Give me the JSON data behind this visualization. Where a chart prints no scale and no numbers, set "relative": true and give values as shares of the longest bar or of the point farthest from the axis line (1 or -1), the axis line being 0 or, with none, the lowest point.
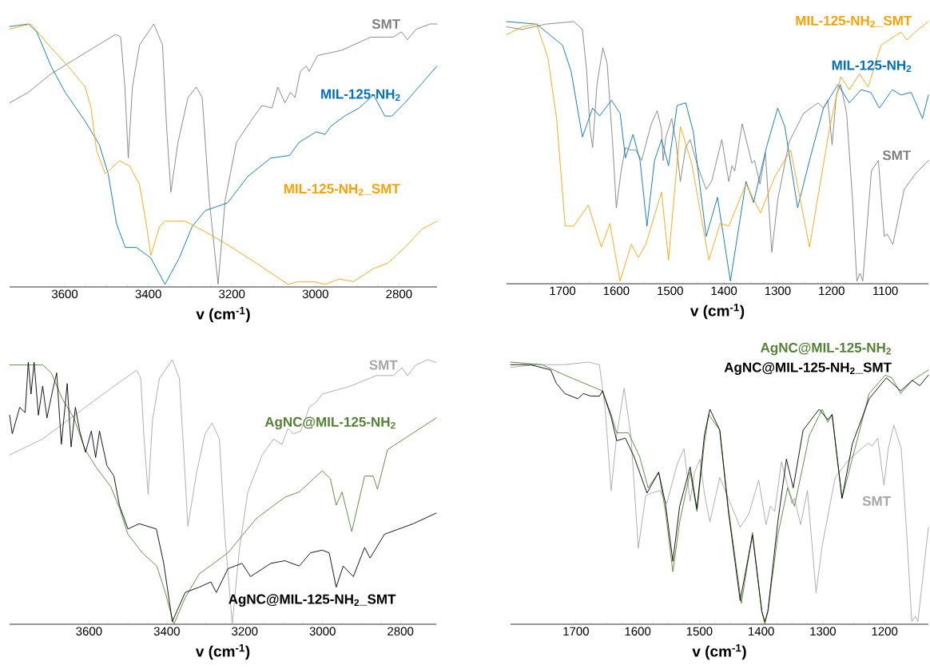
{
  "chart_data": [
    {
      "type": "line",
      "relative": true,
      "xlabel": "v (cm$^{-1}$)",
      "xlim": [
        3732,
        2709
      ],
      "xticks": [
        3600,
        3400,
        3200,
        3000,
        2800
      ],
      "series": [
        {
          "name": "SMT",
          "color": "#7f7f7f",
          "x": [
            3732,
            3687,
            3633,
            3551,
            3479,
            3466,
            3456,
            3448,
            3438,
            3421,
            3387,
            3366,
            3356,
            3346,
            3329,
            3305,
            3285,
            3271,
            3254,
            3233,
            3216,
            3189,
            3155,
            3128,
            3104,
            3090,
            3073,
            3060,
            3049,
            3036,
            3022,
            3015,
            2995,
            2937,
            2868,
            2814,
            2794,
            2780,
            2759,
            2725,
            2709
          ],
          "values": [
            0.7,
            0.74,
            0.81,
            0.89,
            0.96,
            0.95,
            0.76,
            0.49,
            0.76,
            0.92,
            1.0,
            0.92,
            0.6,
            0.36,
            0.55,
            0.72,
            0.76,
            0.72,
            0.33,
            0.01,
            0.33,
            0.55,
            0.63,
            0.69,
            0.68,
            0.76,
            0.7,
            0.74,
            0.72,
            0.82,
            0.84,
            0.82,
            0.88,
            0.9,
            0.95,
            0.95,
            0.97,
            0.94,
            0.98,
            1.0,
            1.0
          ]
        },
        {
          "name": "MIL-125-NH$_{2}$",
          "color": "#0070c0",
          "x": [
            3732,
            3687,
            3667,
            3633,
            3599,
            3551,
            3517,
            3496,
            3476,
            3455,
            3428,
            3394,
            3360,
            3326,
            3295,
            3264,
            3210,
            3162,
            3107,
            3062,
            3039,
            2998,
            2977,
            2964,
            2930,
            2896,
            2868,
            2861,
            2834,
            2817,
            2786,
            2709
          ],
          "values": [
            0.99,
            1.0,
            0.97,
            0.84,
            0.74,
            0.63,
            0.54,
            0.43,
            0.24,
            0.15,
            0.15,
            0.11,
            0.01,
            0.11,
            0.23,
            0.29,
            0.32,
            0.42,
            0.49,
            0.5,
            0.55,
            0.59,
            0.58,
            0.61,
            0.65,
            0.68,
            0.72,
            0.73,
            0.65,
            0.65,
            0.7,
            0.84
          ]
        },
        {
          "name": "MIL-125-NH$_{2}$_SMT",
          "color": "#ffa000",
          "x": [
            3732,
            3708,
            3681,
            3633,
            3592,
            3551,
            3537,
            3524,
            3503,
            3469,
            3445,
            3421,
            3404,
            3394,
            3373,
            3360,
            3312,
            3264,
            3210,
            3141,
            3066,
            3039,
            3005,
            2977,
            2943,
            2909,
            2861,
            2827,
            2786,
            2745,
            2709
          ],
          "values": [
            0.98,
            0.99,
            1.0,
            0.91,
            0.84,
            0.76,
            0.68,
            0.52,
            0.43,
            0.48,
            0.46,
            0.39,
            0.23,
            0.12,
            0.23,
            0.25,
            0.25,
            0.21,
            0.16,
            0.09,
            0.01,
            0.02,
            0.02,
            0.01,
            0.03,
            0.02,
            0.07,
            0.09,
            0.15,
            0.22,
            0.25
          ]
        }
      ]
    },
    {
      "type": "line",
      "relative": true,
      "xlabel": "v (cm$^{-1}$)",
      "xlim": [
        1804,
        1020
      ],
      "xticks": [
        1700,
        1600,
        1500,
        1400,
        1300,
        1200,
        1100
      ],
      "series": [
        {
          "name": "SMT",
          "color": "#7f7f7f",
          "x": [
            1804,
            1775,
            1732,
            1679,
            1663,
            1655,
            1649,
            1644,
            1636,
            1625,
            1617,
            1607,
            1600,
            1591,
            1583,
            1575,
            1564,
            1553,
            1535,
            1524,
            1516,
            1513,
            1508,
            1497,
            1489,
            1481,
            1471,
            1463,
            1449,
            1433,
            1423,
            1404,
            1391,
            1385,
            1380,
            1366,
            1348,
            1343,
            1333,
            1323,
            1311,
            1300,
            1279,
            1252,
            1225,
            1215,
            1207,
            1199,
            1191,
            1183,
            1172,
            1161,
            1153,
            1147,
            1142,
            1126,
            1113,
            1102,
            1097,
            1086,
            1065,
            1044,
            1020
          ],
          "values": [
            0.98,
            0.97,
            0.99,
            1.0,
            0.97,
            0.81,
            0.59,
            0.52,
            0.76,
            0.9,
            0.84,
            0.54,
            0.29,
            0.43,
            0.52,
            0.51,
            0.51,
            0.47,
            0.61,
            0.66,
            0.59,
            0.47,
            0.56,
            0.63,
            0.54,
            0.39,
            0.52,
            0.55,
            0.45,
            0.36,
            0.39,
            0.55,
            0.39,
            0.45,
            0.43,
            0.61,
            0.46,
            0.47,
            0.38,
            0.5,
            0.12,
            0.32,
            0.54,
            0.65,
            0.69,
            0.67,
            0.7,
            0.53,
            0.72,
            0.76,
            0.65,
            0.32,
            0.01,
            0.04,
            0.01,
            0.43,
            0.47,
            0.18,
            0.19,
            0.15,
            0.36,
            0.42,
            0.47
          ]
        },
        {
          "name": "MIL-125-NH$_{2}$",
          "color": "#0070c0",
          "x": [
            1804,
            1748,
            1700,
            1684,
            1663,
            1644,
            1631,
            1609,
            1593,
            1583,
            1569,
            1556,
            1543,
            1529,
            1516,
            1503,
            1487,
            1471,
            1457,
            1433,
            1412,
            1388,
            1359,
            1345,
            1321,
            1300,
            1287,
            1263,
            1241,
            1215,
            1188,
            1167,
            1145,
            1127,
            1111,
            1087,
            1071,
            1052,
            1031,
            1020
          ],
          "values": [
            1.0,
            0.99,
            0.91,
            0.81,
            0.56,
            0.67,
            0.64,
            0.7,
            0.65,
            0.48,
            0.57,
            0.47,
            0.22,
            0.47,
            0.55,
            0.45,
            0.68,
            0.69,
            0.58,
            0.18,
            0.33,
            0.01,
            0.39,
            0.31,
            0.52,
            0.67,
            0.6,
            0.29,
            0.47,
            0.67,
            0.76,
            0.69,
            0.74,
            0.73,
            0.67,
            0.74,
            0.72,
            0.73,
            0.63,
            0.72
          ]
        },
        {
          "name": "MIL-125-NH$_{2}$_SMT",
          "color": "#ffa000",
          "x": [
            1804,
            1775,
            1748,
            1727,
            1711,
            1695,
            1679,
            1652,
            1628,
            1612,
            1593,
            1572,
            1559,
            1545,
            1516,
            1503,
            1481,
            1460,
            1428,
            1407,
            1391,
            1359,
            1332,
            1305,
            1276,
            1241,
            1204,
            1183,
            1167,
            1148,
            1132,
            1108,
            1071,
            1060,
            1039,
            1020
          ],
          "values": [
            0.95,
            0.98,
            0.99,
            0.86,
            0.63,
            0.22,
            0.22,
            0.3,
            0.14,
            0.23,
            0.01,
            0.15,
            0.1,
            0.15,
            0.35,
            0.09,
            0.6,
            0.46,
            0.09,
            0.23,
            0.22,
            0.38,
            0.27,
            0.41,
            0.51,
            0.14,
            0.59,
            0.79,
            0.74,
            0.8,
            0.75,
            0.91,
            0.96,
            0.93,
            0.97,
            1.0
          ]
        }
      ]
    },
    {
      "type": "line",
      "relative": true,
      "xlabel": "v (cm$^{-1}$)",
      "xlim": [
        3804,
        2708
      ],
      "xticks": [
        3600,
        3400,
        3200,
        3000,
        2800
      ],
      "series": [
        {
          "name": "SMT",
          "color": "#a6a6a6",
          "x": [
            3804,
            3719,
            3646,
            3573,
            3507,
            3478,
            3467,
            3459,
            3448,
            3437,
            3419,
            3386,
            3368,
            3357,
            3346,
            3324,
            3302,
            3284,
            3265,
            3251,
            3232,
            3214,
            3192,
            3155,
            3126,
            3104,
            3089,
            3075,
            3056,
            3034,
            3016,
            3001,
            2928,
            2862,
            2818,
            2796,
            2782,
            2760,
            2730,
            2708
          ],
          "values": [
            0.64,
            0.7,
            0.78,
            0.86,
            0.93,
            0.96,
            0.93,
            0.71,
            0.49,
            0.77,
            0.93,
            1.0,
            0.93,
            0.66,
            0.37,
            0.57,
            0.72,
            0.76,
            0.7,
            0.34,
            0.0,
            0.28,
            0.5,
            0.64,
            0.7,
            0.68,
            0.74,
            0.72,
            0.73,
            0.82,
            0.84,
            0.87,
            0.9,
            0.94,
            0.94,
            0.97,
            0.94,
            0.98,
            1.0,
            0.99
          ]
        },
        {
          "name": "AgNC@MIL-125-NH$_{2}$",
          "color": "#548235",
          "x": [
            3804,
            3756,
            3719,
            3697,
            3668,
            3639,
            3610,
            3580,
            3544,
            3522,
            3500,
            3463,
            3426,
            3404,
            3382,
            3353,
            3317,
            3243,
            3170,
            3097,
            3060,
            3001,
            2980,
            2965,
            2950,
            2925,
            2892,
            2870,
            2859,
            2833,
            2708
          ],
          "values": [
            0.98,
            0.98,
            0.98,
            0.95,
            0.85,
            0.78,
            0.66,
            0.59,
            0.52,
            0.44,
            0.34,
            0.27,
            0.22,
            0.12,
            0.0,
            0.1,
            0.19,
            0.27,
            0.4,
            0.48,
            0.5,
            0.58,
            0.55,
            0.45,
            0.5,
            0.35,
            0.56,
            0.56,
            0.51,
            0.66,
            0.78
          ]
        },
        {
          "name": "AgNC@MIL-125-NH$_{2}$_SMT",
          "color": "#000000",
          "x": [
            3804,
            3797,
            3778,
            3764,
            3756,
            3749,
            3741,
            3730,
            3719,
            3708,
            3694,
            3683,
            3671,
            3656,
            3646,
            3635,
            3624,
            3609,
            3594,
            3583,
            3573,
            3554,
            3536,
            3522,
            3500,
            3471,
            3449,
            3427,
            3408,
            3386,
            3353,
            3317,
            3287,
            3273,
            3243,
            3207,
            3185,
            3133,
            3097,
            3060,
            3031,
            3001,
            2983,
            2965,
            2947,
            2921,
            2892,
            2878,
            2841,
            2767,
            2708
          ],
          "values": [
            0.79,
            0.72,
            0.82,
            0.8,
            0.99,
            0.87,
            0.99,
            0.79,
            0.9,
            0.78,
            0.88,
            0.95,
            0.68,
            0.91,
            0.67,
            0.82,
            0.73,
            0.65,
            0.73,
            0.63,
            0.73,
            0.6,
            0.56,
            0.45,
            0.36,
            0.38,
            0.37,
            0.36,
            0.23,
            0.01,
            0.12,
            0.14,
            0.16,
            0.12,
            0.21,
            0.23,
            0.18,
            0.23,
            0.24,
            0.22,
            0.27,
            0.28,
            0.27,
            0.14,
            0.22,
            0.18,
            0.29,
            0.25,
            0.34,
            0.38,
            0.42
          ]
        }
      ]
    },
    {
      "type": "line",
      "relative": true,
      "xlabel": "v (cm$^{-1}$)",
      "xlim": [
        1806,
        1129
      ],
      "xticks": [
        1700,
        1600,
        1500,
        1400,
        1300,
        1200
      ],
      "series": [
        {
          "name": "SMT",
          "color": "#a6a6a6",
          "x": [
            1806,
            1764,
            1718,
            1680,
            1662,
            1653,
            1643,
            1634,
            1622,
            1611,
            1599,
            1587,
            1578,
            1564,
            1553,
            1536,
            1525,
            1515,
            1508,
            1499,
            1492,
            1483,
            1467,
            1453,
            1434,
            1420,
            1404,
            1392,
            1385,
            1378,
            1367,
            1350,
            1346,
            1336,
            1325,
            1311,
            1301,
            1280,
            1257,
            1227,
            1220,
            1211,
            1201,
            1194,
            1185,
            1173,
            1164,
            1156,
            1150,
            1146,
            1129
          ],
          "values": [
            0.98,
            0.99,
            0.99,
            1.0,
            0.99,
            0.83,
            0.51,
            0.72,
            0.9,
            0.72,
            0.29,
            0.49,
            0.5,
            0.51,
            0.46,
            0.61,
            0.67,
            0.47,
            0.58,
            0.63,
            0.5,
            0.39,
            0.56,
            0.48,
            0.37,
            0.42,
            0.55,
            0.38,
            0.45,
            0.43,
            0.62,
            0.46,
            0.48,
            0.38,
            0.51,
            0.12,
            0.3,
            0.56,
            0.63,
            0.69,
            0.68,
            0.71,
            0.53,
            0.67,
            0.76,
            0.67,
            0.34,
            0.01,
            0.03,
            0.01,
            0.37
          ]
        },
        {
          "name": "AgNC@MIL-125-NH$_{2}$",
          "color": "#548235",
          "x": [
            1806,
            1755,
            1718,
            1657,
            1643,
            1634,
            1615,
            1597,
            1583,
            1566,
            1555,
            1543,
            1532,
            1515,
            1504,
            1492,
            1485,
            1467,
            1453,
            1432,
            1414,
            1399,
            1394,
            1389,
            1373,
            1357,
            1346,
            1322,
            1301,
            1292,
            1285,
            1269,
            1248,
            1225,
            1199,
            1188,
            1174,
            1155,
            1129
          ],
          "values": [
            1.0,
            0.99,
            0.95,
            0.89,
            0.8,
            0.73,
            0.73,
            0.64,
            0.52,
            0.58,
            0.43,
            0.2,
            0.39,
            0.58,
            0.43,
            0.69,
            0.8,
            0.74,
            0.44,
            0.08,
            0.35,
            0.05,
            0.0,
            0.05,
            0.34,
            0.52,
            0.45,
            0.72,
            0.82,
            0.77,
            0.8,
            0.48,
            0.67,
            0.88,
            0.95,
            0.94,
            0.88,
            0.93,
            0.97
          ]
        },
        {
          "name": "AgNC@MIL-125-NH$_{2}$_SMT",
          "color": "#000000",
          "x": [
            1806,
            1774,
            1741,
            1732,
            1718,
            1697,
            1688,
            1676,
            1662,
            1657,
            1643,
            1634,
            1620,
            1606,
            1585,
            1566,
            1555,
            1543,
            1532,
            1515,
            1504,
            1492,
            1483,
            1467,
            1453,
            1434,
            1414,
            1399,
            1394,
            1389,
            1373,
            1359,
            1348,
            1332,
            1306,
            1292,
            1285,
            1269,
            1252,
            1225,
            1197,
            1174,
            1155,
            1143,
            1129
          ],
          "values": [
            0.99,
            0.99,
            0.97,
            0.92,
            0.88,
            0.86,
            0.88,
            0.87,
            0.87,
            0.89,
            0.79,
            0.7,
            0.71,
            0.64,
            0.5,
            0.58,
            0.46,
            0.24,
            0.45,
            0.6,
            0.44,
            0.72,
            0.82,
            0.74,
            0.43,
            0.09,
            0.34,
            0.05,
            0.01,
            0.05,
            0.39,
            0.63,
            0.52,
            0.74,
            0.82,
            0.78,
            0.8,
            0.48,
            0.69,
            0.86,
            0.94,
            0.89,
            0.93,
            0.91,
            0.95
          ]
        }
      ]
    }
  ]
}
